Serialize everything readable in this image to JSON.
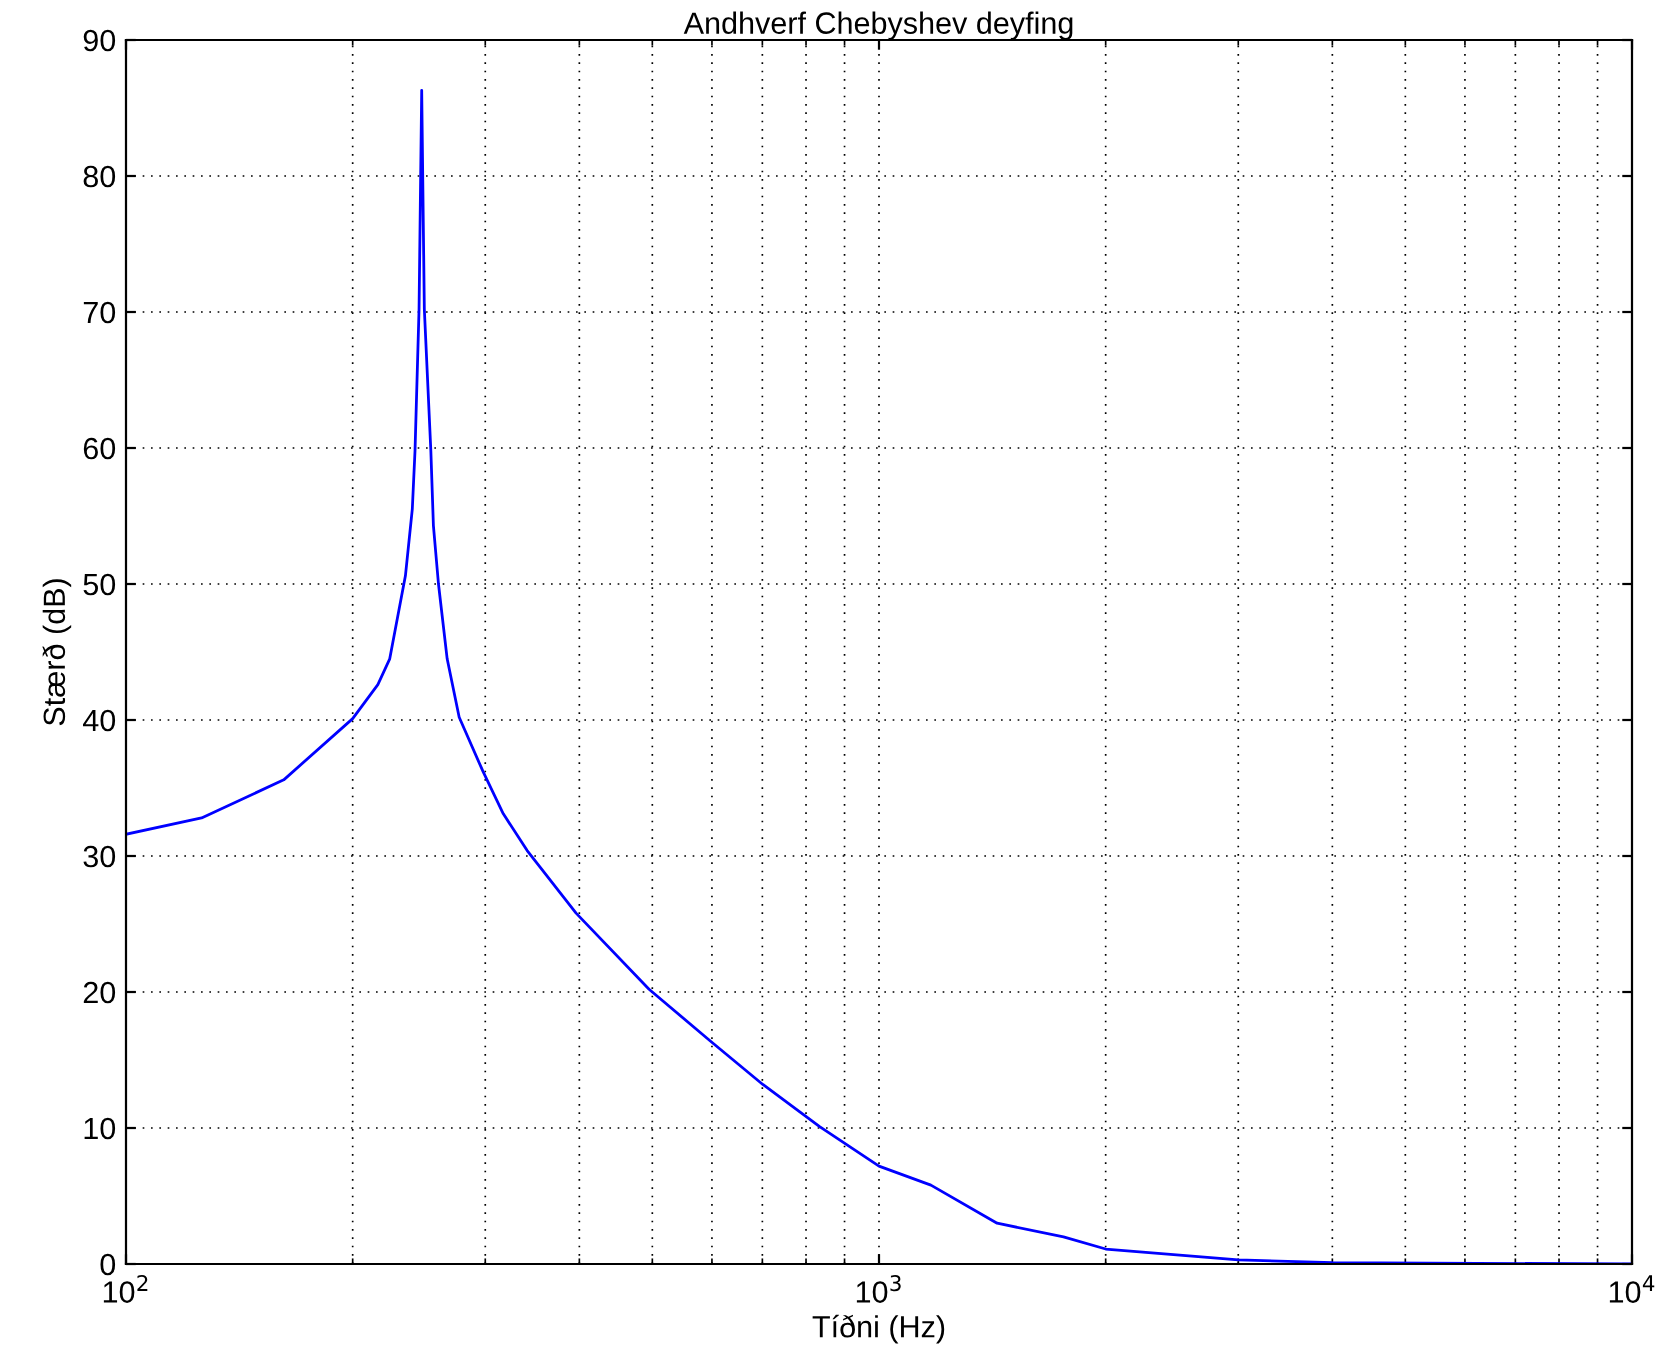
{
  "chart_data": {
    "type": "line",
    "title": "Andhverf Chebyshev deyfing",
    "xlabel": "Tíðni (Hz)",
    "ylabel": "Stærð (dB)",
    "log": "x",
    "xlim": [
      100,
      10000
    ],
    "xticks": [
      {
        "value": 100,
        "label": "10$^{2}$"
      },
      {
        "value": 1000,
        "label": "10$^{3}$"
      },
      {
        "value": 10000,
        "label": "10$^{4}$"
      }
    ],
    "ylim": [
      0,
      90
    ],
    "yticks": [
      0,
      10,
      20,
      30,
      40,
      50,
      60,
      70,
      80,
      90
    ],
    "grid": true,
    "legend": false,
    "marker": "none",
    "line_style": "solid",
    "series": [
      {
        "color": "#0000ff",
        "x": [
          100,
          126,
          162,
          200,
          216,
          224,
          235,
          240,
          242,
          245,
          247,
          249,
          254,
          256,
          260,
          267,
          277,
          298,
          317,
          341,
          396,
          495,
          597,
          701,
          834,
          1000,
          1172,
          1435,
          1758,
          2000,
          3000,
          4000,
          10000
        ],
        "values": [
          31.6,
          32.8,
          35.6,
          40.1,
          42.6,
          44.5,
          50.6,
          55.5,
          59.8,
          70.2,
          86.3,
          70.2,
          59.8,
          54.3,
          50.0,
          44.5,
          40.2,
          36.2,
          33.1,
          30.4,
          25.8,
          20.2,
          16.4,
          13.2,
          10.1,
          7.2,
          5.8,
          3.0,
          2.0,
          1.1,
          0.3,
          0.1,
          0.0
        ]
      }
    ]
  }
}
